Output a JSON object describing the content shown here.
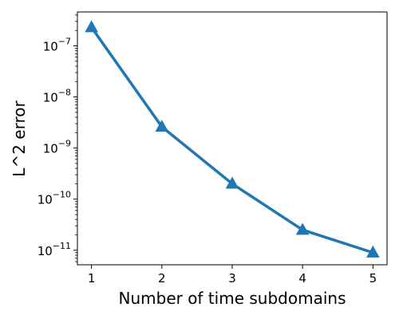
{
  "chart_data": {
    "type": "line",
    "title": "",
    "xlabel": "Number of time subdomains",
    "ylabel": "L^2 error",
    "x": [
      1,
      2,
      3,
      4,
      5
    ],
    "series": [
      {
        "values": [
          2.3e-07,
          2.6e-09,
          2e-10,
          2.5e-11,
          9e-12
        ],
        "color": "#1f77b4",
        "marker": "triangle-up"
      }
    ],
    "xlim": [
      0.8,
      5.2
    ],
    "ylim": [
      5.2e-12,
      4.6e-07
    ],
    "yscale": "log",
    "xticks": [
      "1",
      "2",
      "3",
      "4",
      "5"
    ],
    "yticks": [
      {
        "base": "10",
        "exp": "−7",
        "value": 1e-07
      },
      {
        "base": "10",
        "exp": "−8",
        "value": 1e-08
      },
      {
        "base": "10",
        "exp": "−9",
        "value": 1e-09
      },
      {
        "base": "10",
        "exp": "−10",
        "value": 1e-10
      },
      {
        "base": "10",
        "exp": "−11",
        "value": 1e-11
      }
    ],
    "grid": false,
    "legend": "none"
  }
}
